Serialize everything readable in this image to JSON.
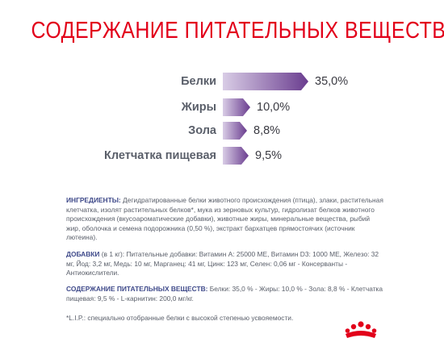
{
  "title": "СОДЕРЖАНИЕ ПИТАТЕЛЬНЫХ ВЕЩЕСТВ",
  "nutrients": [
    {
      "label": "Белки",
      "value": "35,0%",
      "level": 35.0
    },
    {
      "label": "Жиры",
      "value": "10,0%",
      "level": 10.0
    },
    {
      "label": "Зола",
      "value": "8,8%",
      "level": 8.8
    },
    {
      "label": "Клетчатка пищевая",
      "value": "9,5%",
      "level": 9.5
    }
  ],
  "ingredients": {
    "heading": "ИНГРЕДИЕНТЫ:",
    "text": " Дегидратированные белки животного происхождения (птица), злаки, растительная клетчатка, изолят растительных белков*, мука из зерновых культур, гидролизат белков животного происхождения (вкусоароматические добавки), животные жиры, минеральные вещества, рыбий жир, оболочка и семена подорожника (0,50 %), экстракт бархатцев прямостоячих (источник лютеина)."
  },
  "additives": {
    "heading": "ДОБАВКИ",
    "text": " (в 1 кг): Питательные добавки: Витамин A: 25000 МЕ, Витамин D3: 1000 МЕ, Железо: 32 мг, Йод: 3,2 мг, Медь: 10 мг, Марганец: 41 мг, Цинк: 123 мг, Селен: 0,06 мг - Консерванты - Антиокислители."
  },
  "analysis": {
    "heading": "СОДЕРЖАНИЕ ПИТАТЕЛЬНЫХ ВЕЩЕСТВ:",
    "text": " Белки: 35,0 % - Жиры: 10,0 % - Зола: 8,8 % - Клетчатка пищевая: 9,5 % - L-карнитин: 200,0 мг/кг."
  },
  "footnote": "*L.I.P.: специально отобранные белки с высокой степенью усвояемости.",
  "colors": {
    "title": "#e2001a",
    "bar_light": "#d9cde6",
    "bar_dark": "#6a3d8f",
    "heading": "#3f4a8a",
    "logo": "#e2001a"
  },
  "logo_icon": "royal-canin-crown-icon"
}
